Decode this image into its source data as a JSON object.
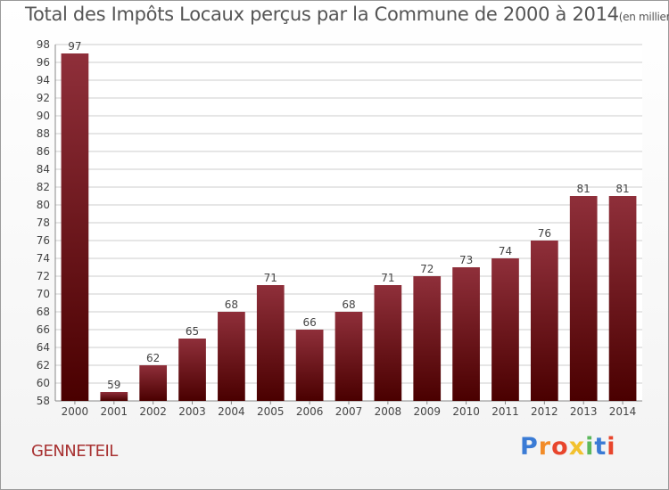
{
  "title": "Total des Impôts Locaux perçus par la Commune de 2000 à 2014",
  "unit_note": "(en milliers d'€)",
  "commune": "GENNETEIL",
  "logo": {
    "letters": [
      "P",
      "r",
      "o",
      "x",
      "i",
      "t",
      "i"
    ],
    "colors": [
      "#3a7bd5",
      "#f28c28",
      "#e8452c",
      "#f2c12e",
      "#5cb85c",
      "#3a7bd5",
      "#e8452c"
    ]
  },
  "colors": {
    "bar_top": "#8f2f3a",
    "bar_bottom": "#4a0000",
    "grid": "#cccccc",
    "text": "#444444"
  },
  "chart_data": {
    "type": "bar",
    "categories": [
      "2000",
      "2001",
      "2002",
      "2003",
      "2004",
      "2005",
      "2006",
      "2007",
      "2008",
      "2009",
      "2010",
      "2011",
      "2012",
      "2013",
      "2014"
    ],
    "values": [
      97,
      59,
      62,
      65,
      68,
      71,
      66,
      68,
      71,
      72,
      73,
      74,
      76,
      81,
      81
    ],
    "data_labels": [
      "97",
      "59",
      "62",
      "65",
      "68",
      "71",
      "66",
      "68",
      "71",
      "72",
      "73",
      "74",
      "76",
      "81",
      "81"
    ],
    "ylim": [
      58,
      98
    ],
    "yticks": [
      "58",
      "60",
      "62",
      "64",
      "66",
      "68",
      "70",
      "72",
      "74",
      "76",
      "78",
      "80",
      "82",
      "84",
      "86",
      "88",
      "90",
      "92",
      "94",
      "96",
      "98"
    ],
    "grid": true,
    "xlabel": "",
    "ylabel": ""
  }
}
